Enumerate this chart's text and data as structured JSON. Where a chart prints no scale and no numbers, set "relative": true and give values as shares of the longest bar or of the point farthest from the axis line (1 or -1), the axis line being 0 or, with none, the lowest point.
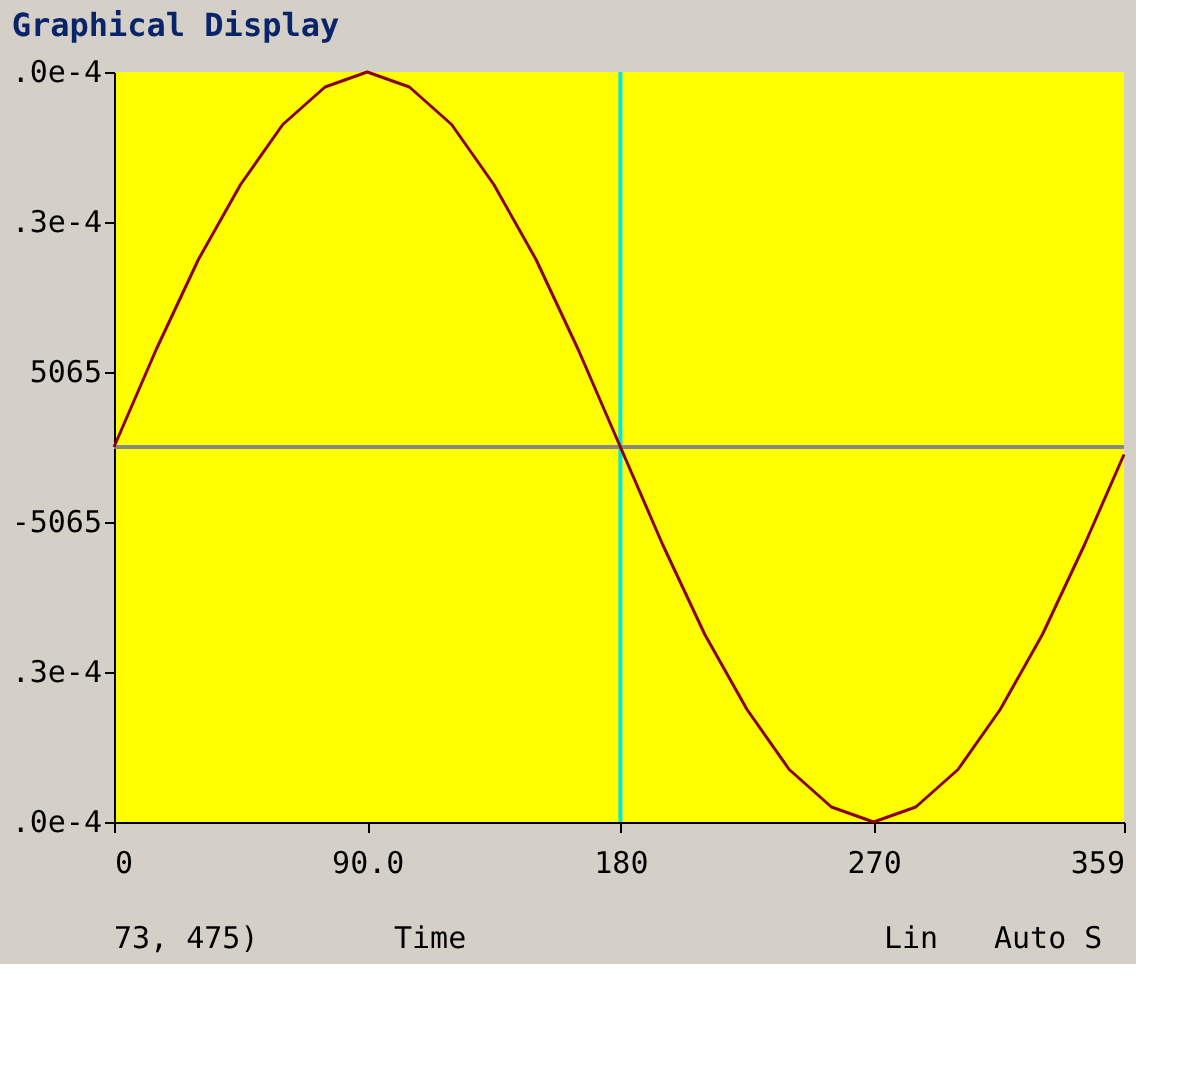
{
  "chart_data": {
    "type": "line",
    "title": "Graphical Display",
    "relative": true,
    "xlim": [
      0,
      359
    ],
    "xticks": [
      0,
      {
        "value": 90,
        "label": "90.0"
      },
      180,
      270,
      359
    ],
    "x": [
      0,
      15,
      30,
      45,
      60,
      75,
      90,
      105,
      120,
      135,
      150,
      165,
      180,
      195,
      210,
      225,
      240,
      255,
      270,
      285,
      300,
      315,
      330,
      345,
      359
    ],
    "series": [
      {
        "color": "#8b0000",
        "values": [
          0.5,
          0.63,
          0.75,
          0.85,
          0.93,
          0.98,
          1,
          0.98,
          0.93,
          0.85,
          0.75,
          0.63,
          0.5,
          0.37,
          0.25,
          0.15,
          0.07,
          0.02,
          0,
          0.02,
          0.07,
          0.15,
          0.25,
          0.37,
          0.49
        ]
      }
    ],
    "ref_lines": [
      {
        "axis": "x",
        "value": 180,
        "color": "#00e5ee"
      },
      {
        "axis": "y",
        "value": 0.5,
        "color": "#888888"
      }
    ],
    "annotations": [
      ".0e-4",
      ".3e-4",
      "5065",
      "-5065",
      ".3e-4",
      ".0e-4",
      "73, 475)",
      "Time",
      "Lin",
      "Auto S"
    ],
    "grid": false,
    "marker": "none",
    "line_style": "solid"
  }
}
